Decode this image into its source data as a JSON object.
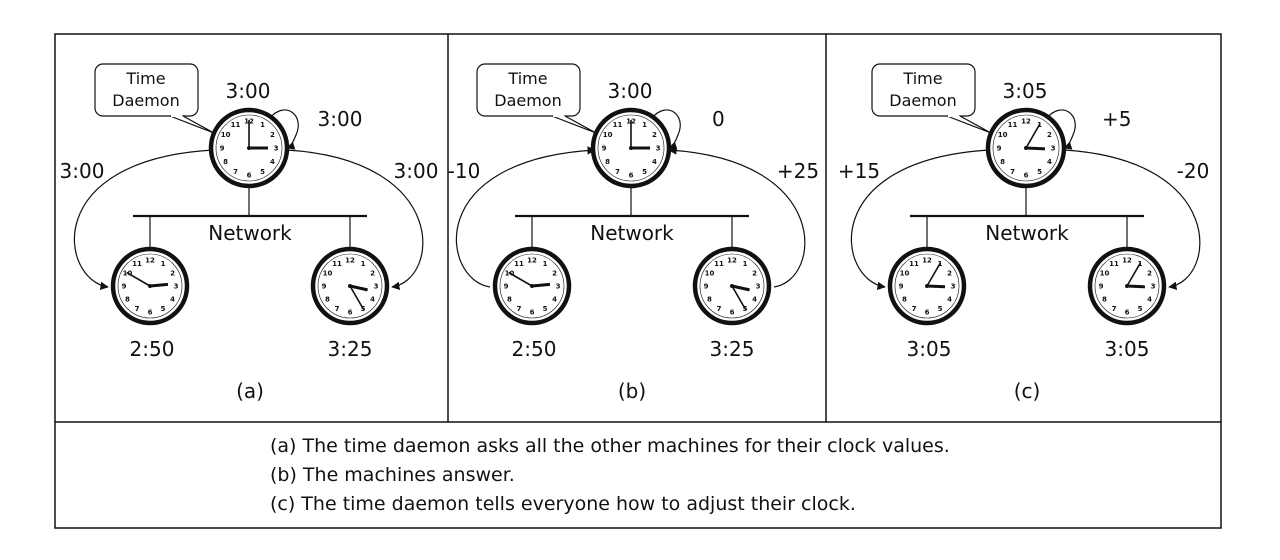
{
  "panels": [
    {
      "label": "(a)",
      "bubble_line1": "Time",
      "bubble_line2": "Daemon",
      "network_label": "Network",
      "daemon_time": "3:00",
      "self_msg": "3:00",
      "left_msg": "3:00",
      "right_msg": "3:00",
      "left_time": "2:50",
      "right_time": "3:25",
      "daemon_hands": {
        "hour": 3,
        "minute": 0
      },
      "left_hands": {
        "hour": 2,
        "minute": 50
      },
      "right_hands": {
        "hour": 3,
        "minute": 25
      },
      "arrow_dir": "out"
    },
    {
      "label": "(b)",
      "bubble_line1": "Time",
      "bubble_line2": "Daemon",
      "network_label": "Network",
      "daemon_time": "3:00",
      "self_msg": "0",
      "left_msg": "-10",
      "right_msg": "+25",
      "left_time": "2:50",
      "right_time": "3:25",
      "daemon_hands": {
        "hour": 3,
        "minute": 0
      },
      "left_hands": {
        "hour": 2,
        "minute": 50
      },
      "right_hands": {
        "hour": 3,
        "minute": 25
      },
      "arrow_dir": "in"
    },
    {
      "label": "(c)",
      "bubble_line1": "Time",
      "bubble_line2": "Daemon",
      "network_label": "Network",
      "daemon_time": "3:05",
      "self_msg": "+5",
      "left_msg": "+15",
      "right_msg": "-20",
      "left_time": "3:05",
      "right_time": "3:05",
      "daemon_hands": {
        "hour": 3,
        "minute": 5
      },
      "left_hands": {
        "hour": 3,
        "minute": 5
      },
      "right_hands": {
        "hour": 3,
        "minute": 5
      },
      "arrow_dir": "out"
    }
  ],
  "caption": {
    "line_a": "(a) The time daemon asks all the other machines for their clock values.",
    "line_b": "(b) The machines answer.",
    "line_c": "(c) The time daemon tells everyone how to adjust their clock."
  }
}
